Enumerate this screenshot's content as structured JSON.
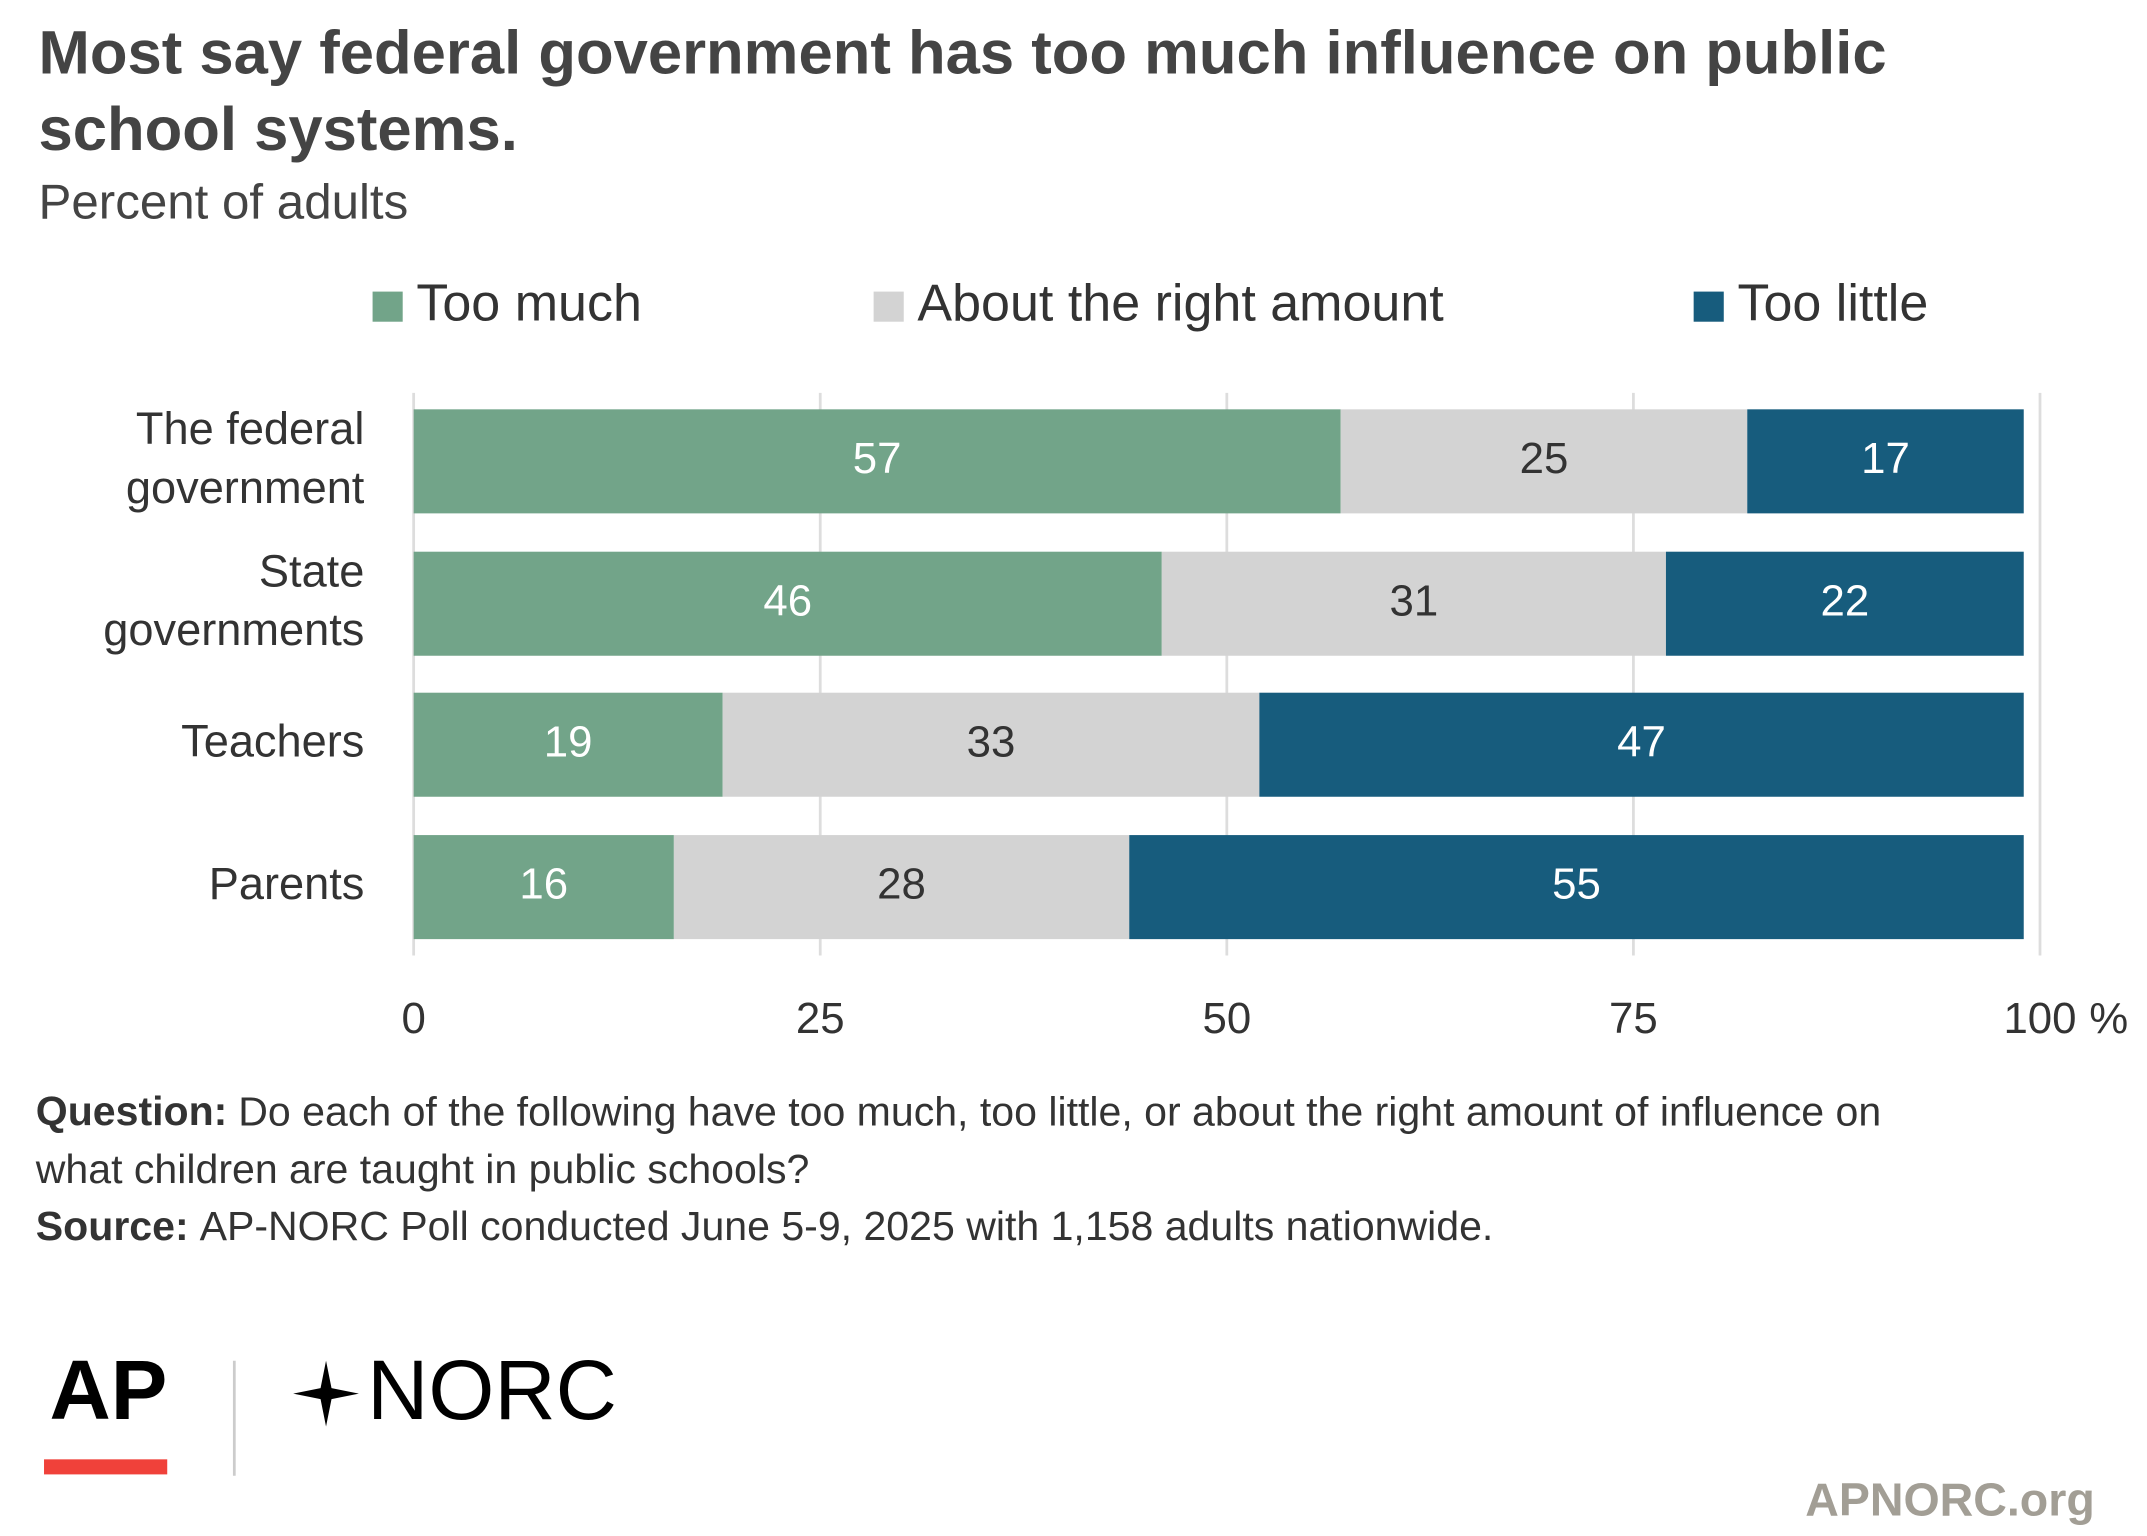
{
  "chart_data": {
    "type": "stacked_barh",
    "title": "Most say federal government has too much influence on public school systems.",
    "subtitle": "Percent of adults",
    "categories": [
      "The federal government",
      "State governments",
      "Teachers",
      "Parents"
    ],
    "series": [
      {
        "name": "Too much",
        "color": "#72a489",
        "label_color": "#ffffff",
        "values": [
          57,
          46,
          19,
          16
        ]
      },
      {
        "name": "About the right amount",
        "color": "#d3d3d3",
        "label_color": "#333333",
        "values": [
          25,
          31,
          33,
          28
        ]
      },
      {
        "name": "Too little",
        "color": "#175c7d",
        "label_color": "#ffffff",
        "values": [
          17,
          22,
          47,
          55
        ]
      }
    ],
    "xlim": [
      0,
      100
    ],
    "xticks": [
      0,
      25,
      50,
      75,
      100
    ],
    "x_unit": "%",
    "grid": true,
    "legend": "top",
    "footer": {
      "question_label": "Question:",
      "question": "Do each of the following have too much, too little, or about the right amount of influence on what children are taught in public schools?",
      "source_label": "Source:",
      "source": "AP-NORC Poll conducted June 5-9, 2025 with 1,158 adults nationwide."
    },
    "logos": {
      "ap": "AP",
      "norc": "NORC",
      "site": "APNORC.org"
    }
  }
}
